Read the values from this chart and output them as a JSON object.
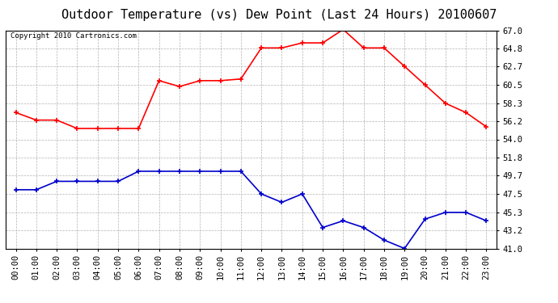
{
  "title": "Outdoor Temperature (vs) Dew Point (Last 24 Hours) 20100607",
  "copyright": "Copyright 2010 Cartronics.com",
  "hours": [
    0,
    1,
    2,
    3,
    4,
    5,
    6,
    7,
    8,
    9,
    10,
    11,
    12,
    13,
    14,
    15,
    16,
    17,
    18,
    19,
    20,
    21,
    22,
    23
  ],
  "temp_red": [
    57.2,
    56.3,
    56.3,
    55.3,
    55.3,
    55.3,
    55.3,
    61.0,
    60.3,
    61.0,
    61.0,
    61.2,
    64.9,
    64.9,
    65.5,
    65.5,
    67.1,
    64.9,
    64.9,
    62.7,
    60.5,
    58.3,
    57.2,
    55.5
  ],
  "dew_blue": [
    48.0,
    48.0,
    49.0,
    49.0,
    49.0,
    49.0,
    50.2,
    50.2,
    50.2,
    50.2,
    50.2,
    50.2,
    47.5,
    46.5,
    47.5,
    43.5,
    44.3,
    43.5,
    42.0,
    41.0,
    44.5,
    45.3,
    45.3,
    44.3
  ],
  "ylim": [
    41.0,
    67.0
  ],
  "yticks": [
    41.0,
    43.2,
    45.3,
    47.5,
    49.7,
    51.8,
    54.0,
    56.2,
    58.3,
    60.5,
    62.7,
    64.8,
    67.0
  ],
  "red_color": "#ff0000",
  "blue_color": "#0000cc",
  "grid_color": "#aaaaaa",
  "bg_color": "#ffffff",
  "title_fontsize": 11,
  "copyright_fontsize": 6.5,
  "tick_fontsize": 7.5
}
